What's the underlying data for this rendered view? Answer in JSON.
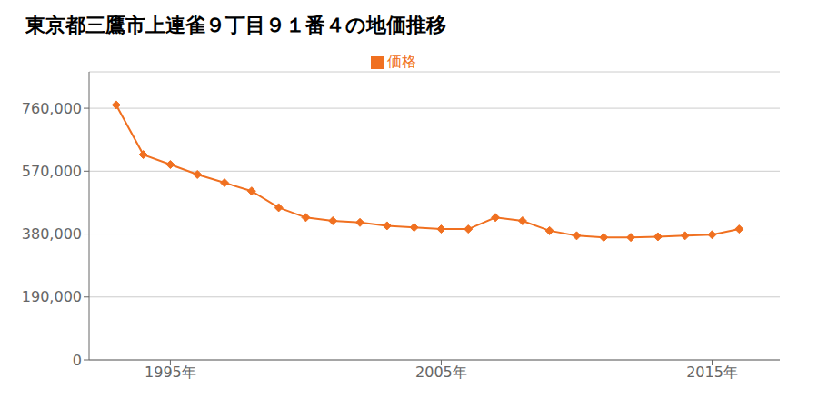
{
  "chart_data": {
    "type": "line",
    "title": "東京都三鷹市上連雀９丁目９１番４の地価推移",
    "x": [
      1993,
      1994,
      1995,
      1996,
      1997,
      1998,
      1999,
      2000,
      2001,
      2002,
      2003,
      2004,
      2005,
      2006,
      2007,
      2008,
      2009,
      2010,
      2011,
      2012,
      2013,
      2014,
      2015,
      2016
    ],
    "series": [
      {
        "name": "価格",
        "color": "#f07020",
        "marker": "diamond",
        "values": [
          770000,
          620000,
          590000,
          560000,
          535000,
          510000,
          460000,
          430000,
          420000,
          415000,
          405000,
          400000,
          395000,
          395000,
          430000,
          420000,
          390000,
          375000,
          370000,
          370000,
          372000,
          375000,
          378000,
          395000
        ]
      }
    ],
    "xlim": [
      1992.0,
      2017.5
    ],
    "xticks": [
      {
        "value": 1995,
        "label": "1995年"
      },
      {
        "value": 2005,
        "label": "2005年"
      },
      {
        "value": 2015,
        "label": "2015年"
      }
    ],
    "ylim": [
      0,
      870000
    ],
    "yticks": [
      0,
      {
        "value": 190000,
        "label": "190,000"
      },
      {
        "value": 380000,
        "label": "380,000"
      },
      {
        "value": 570000,
        "label": "570,000"
      },
      {
        "value": 760000,
        "label": "760,000"
      }
    ],
    "grid": true,
    "legend": "top"
  }
}
